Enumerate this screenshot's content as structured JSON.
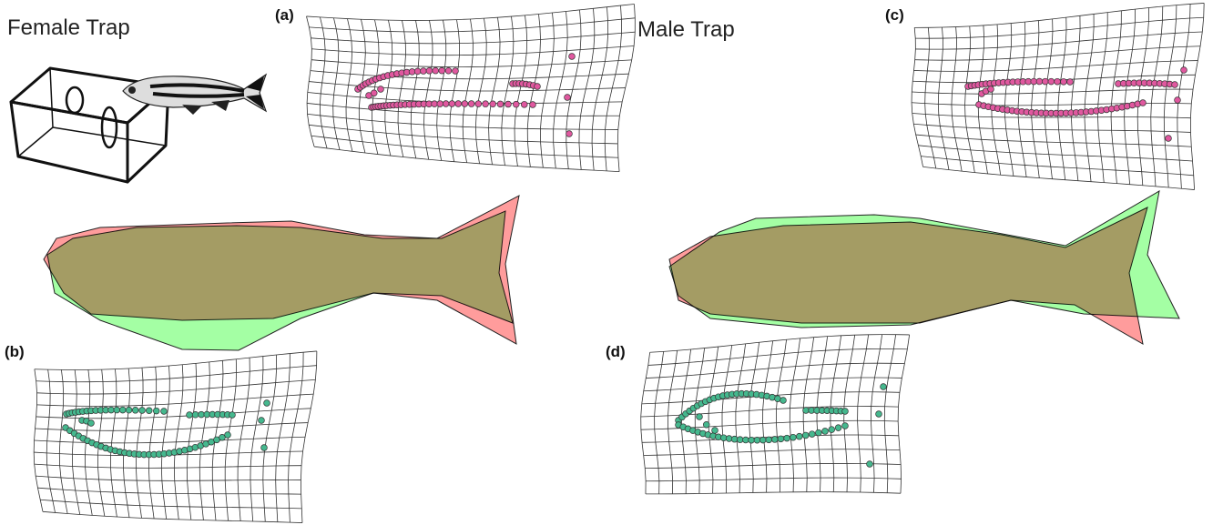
{
  "left_title": "Female Trap",
  "right_title": "Male Trap",
  "panel_labels": [
    "(a)",
    "(b)",
    "(c)",
    "(d)"
  ]
}
